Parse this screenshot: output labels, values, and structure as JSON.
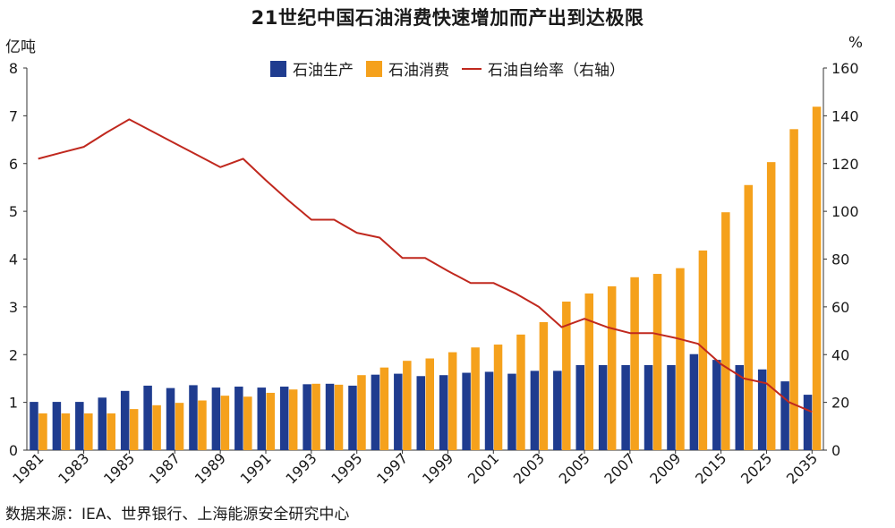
{
  "chart_data": {
    "type": "bar",
    "title": "21世纪中国石油消费快速增加而产出到达极限",
    "ylabel_left": "亿吨",
    "ylabel_right": "%",
    "categories": [
      "1981",
      "1982",
      "1983",
      "1984",
      "1985",
      "1986",
      "1987",
      "1988",
      "1989",
      "1990",
      "1991",
      "1992",
      "1993",
      "1994",
      "1995",
      "1996",
      "1997",
      "1998",
      "1999",
      "2000",
      "2001",
      "2002",
      "2003",
      "2004",
      "2005",
      "2006",
      "2007",
      "2008",
      "2009",
      "2010",
      "2015",
      "2020",
      "2025",
      "2030",
      "2035"
    ],
    "x_tick_labels": [
      "1981",
      "1983",
      "1985",
      "1987",
      "1989",
      "1991",
      "1993",
      "1995",
      "1997",
      "1999",
      "2001",
      "2003",
      "2005",
      "2007",
      "2009",
      "2015",
      "2025",
      "2035"
    ],
    "ylim_left": [
      0,
      8
    ],
    "yticks_left": [
      0,
      1,
      2,
      3,
      4,
      5,
      6,
      7,
      8
    ],
    "ylim_right": [
      0,
      160
    ],
    "yticks_right": [
      0,
      20,
      40,
      60,
      80,
      100,
      120,
      140,
      160
    ],
    "grid": false,
    "legend_position": "top-center",
    "series": [
      {
        "name": "石油生产",
        "type": "bar",
        "axis": "left",
        "color": "#1f3c8f",
        "values": [
          1.01,
          1.01,
          1.01,
          1.1,
          1.24,
          1.35,
          1.3,
          1.36,
          1.31,
          1.33,
          1.31,
          1.33,
          1.38,
          1.39,
          1.35,
          1.58,
          1.6,
          1.55,
          1.57,
          1.62,
          1.64,
          1.6,
          1.66,
          1.66,
          1.78,
          1.78,
          1.78,
          1.78,
          1.78,
          2.01,
          1.89,
          1.78,
          1.69,
          1.44,
          1.16
        ]
      },
      {
        "name": "石油消费",
        "type": "bar",
        "axis": "left",
        "color": "#f5a11c",
        "values": [
          0.77,
          0.77,
          0.77,
          0.77,
          0.86,
          0.94,
          0.99,
          1.04,
          1.14,
          1.12,
          1.2,
          1.27,
          1.39,
          1.37,
          1.57,
          1.73,
          1.87,
          1.92,
          2.05,
          2.15,
          2.21,
          2.42,
          2.68,
          3.11,
          3.28,
          3.43,
          3.62,
          3.69,
          3.81,
          4.18,
          4.98,
          5.55,
          6.03,
          6.72,
          7.19
        ]
      },
      {
        "name": "石油自给率（右轴）",
        "type": "line",
        "axis": "right",
        "color": "#c0281e",
        "values": [
          122,
          124.5,
          127,
          133,
          138.5,
          133.5,
          128.5,
          123.5,
          118.5,
          122,
          113,
          104.5,
          96.5,
          96.5,
          91,
          89,
          80.5,
          80.5,
          75,
          70,
          70,
          65.5,
          60,
          51.5,
          55,
          51.5,
          49,
          49,
          47,
          44.5,
          36,
          30,
          28,
          20,
          16
        ]
      }
    ],
    "source": "数据来源：IEA、世界银行、上海能源安全研究中心"
  }
}
